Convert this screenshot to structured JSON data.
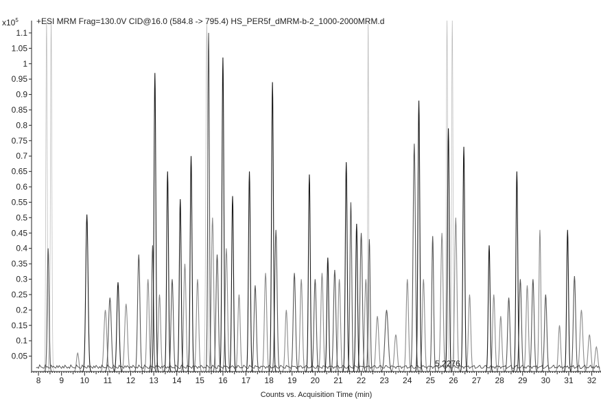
{
  "chart_data": {
    "type": "line",
    "title": "+ESI MRM Frag=130.0V CID@16.0 (584.8 -> 795.4) HS_PER5f_dMRM-b-2_1000-2000MRM.d",
    "xlabel": "Counts vs. Acquisition Time (min)",
    "ylabel": "",
    "y_multiplier_label": "x10",
    "y_multiplier_exp": "5",
    "xlim": [
      7.7,
      32.4
    ],
    "ylim": [
      0,
      1.14
    ],
    "x_ticks": [
      8,
      9,
      10,
      11,
      12,
      13,
      14,
      15,
      16,
      17,
      18,
      19,
      20,
      21,
      22,
      23,
      24,
      25,
      26,
      27,
      28,
      29,
      30,
      31,
      32
    ],
    "x_tick_labels": [
      "8",
      "9",
      "10",
      "11",
      "12",
      "13",
      "14",
      "15",
      "16",
      "17",
      "18",
      "19",
      "20",
      "21",
      "22",
      "23",
      "24",
      "25",
      "26",
      "27",
      "28",
      "29",
      "30",
      "31",
      "32"
    ],
    "y_ticks": [
      0.05,
      0.1,
      0.15,
      0.2,
      0.25,
      0.3,
      0.35,
      0.4,
      0.45,
      0.5,
      0.55,
      0.6,
      0.65,
      0.7,
      0.75,
      0.8,
      0.85,
      0.9,
      0.95,
      1,
      1.05,
      1.1
    ],
    "y_tick_labels": [
      "0.05",
      "0.1",
      "0.15",
      "0.2",
      "0.25",
      "0.3",
      "0.35",
      "0.4",
      "0.45",
      "0.5",
      "0.55",
      "0.6",
      "0.65",
      "0.7",
      "0.75",
      "0.8",
      "0.85",
      "0.9",
      "0.95",
      "1",
      "1.05",
      "1.1"
    ],
    "annotations": [
      {
        "text": "5.2276",
        "x": 25.2,
        "y": 0.015
      }
    ],
    "grid": false,
    "colors": {
      "dark": "#1a1a1a",
      "mid": "#555555",
      "light": "#8a8a8a",
      "faint": "#bdbdbd"
    },
    "peaks": [
      {
        "x": 8.35,
        "h": 1.2,
        "w": 0.03,
        "tone": "faint"
      },
      {
        "x": 8.55,
        "h": 1.2,
        "w": 0.03,
        "tone": "faint"
      },
      {
        "x": 8.42,
        "h": 0.4,
        "w": 0.04,
        "tone": "mid"
      },
      {
        "x": 9.7,
        "h": 0.06,
        "w": 0.05,
        "tone": "light"
      },
      {
        "x": 10.1,
        "h": 0.51,
        "w": 0.05,
        "tone": "dark"
      },
      {
        "x": 10.9,
        "h": 0.2,
        "w": 0.06,
        "tone": "light"
      },
      {
        "x": 11.1,
        "h": 0.24,
        "w": 0.06,
        "tone": "mid"
      },
      {
        "x": 11.45,
        "h": 0.29,
        "w": 0.05,
        "tone": "dark"
      },
      {
        "x": 11.8,
        "h": 0.22,
        "w": 0.06,
        "tone": "light"
      },
      {
        "x": 12.35,
        "h": 0.38,
        "w": 0.05,
        "tone": "mid"
      },
      {
        "x": 12.75,
        "h": 0.3,
        "w": 0.05,
        "tone": "light"
      },
      {
        "x": 12.95,
        "h": 0.41,
        "w": 0.04,
        "tone": "mid"
      },
      {
        "x": 13.05,
        "h": 0.97,
        "w": 0.04,
        "tone": "dark"
      },
      {
        "x": 13.25,
        "h": 0.25,
        "w": 0.05,
        "tone": "light"
      },
      {
        "x": 13.6,
        "h": 0.65,
        "w": 0.04,
        "tone": "dark"
      },
      {
        "x": 13.8,
        "h": 0.3,
        "w": 0.05,
        "tone": "mid"
      },
      {
        "x": 14.15,
        "h": 0.56,
        "w": 0.04,
        "tone": "dark"
      },
      {
        "x": 14.35,
        "h": 0.35,
        "w": 0.05,
        "tone": "light"
      },
      {
        "x": 14.62,
        "h": 0.7,
        "w": 0.04,
        "tone": "dark"
      },
      {
        "x": 14.9,
        "h": 0.3,
        "w": 0.05,
        "tone": "light"
      },
      {
        "x": 15.3,
        "h": 1.13,
        "w": 0.04,
        "tone": "faint"
      },
      {
        "x": 15.38,
        "h": 1.1,
        "w": 0.035,
        "tone": "mid"
      },
      {
        "x": 15.55,
        "h": 0.5,
        "w": 0.05,
        "tone": "light"
      },
      {
        "x": 15.75,
        "h": 0.38,
        "w": 0.05,
        "tone": "mid"
      },
      {
        "x": 16.0,
        "h": 1.02,
        "w": 0.04,
        "tone": "dark"
      },
      {
        "x": 16.15,
        "h": 0.4,
        "w": 0.05,
        "tone": "light"
      },
      {
        "x": 16.42,
        "h": 0.57,
        "w": 0.04,
        "tone": "dark"
      },
      {
        "x": 16.7,
        "h": 0.25,
        "w": 0.05,
        "tone": "light"
      },
      {
        "x": 17.15,
        "h": 0.65,
        "w": 0.04,
        "tone": "dark"
      },
      {
        "x": 17.4,
        "h": 0.28,
        "w": 0.05,
        "tone": "mid"
      },
      {
        "x": 17.85,
        "h": 0.32,
        "w": 0.05,
        "tone": "light"
      },
      {
        "x": 18.15,
        "h": 0.94,
        "w": 0.04,
        "tone": "dark"
      },
      {
        "x": 18.3,
        "h": 0.46,
        "w": 0.05,
        "tone": "mid"
      },
      {
        "x": 18.75,
        "h": 0.2,
        "w": 0.05,
        "tone": "light"
      },
      {
        "x": 19.1,
        "h": 0.32,
        "w": 0.05,
        "tone": "mid"
      },
      {
        "x": 19.4,
        "h": 0.3,
        "w": 0.05,
        "tone": "light"
      },
      {
        "x": 19.75,
        "h": 0.64,
        "w": 0.04,
        "tone": "dark"
      },
      {
        "x": 20.0,
        "h": 0.3,
        "w": 0.05,
        "tone": "mid"
      },
      {
        "x": 20.3,
        "h": 0.32,
        "w": 0.05,
        "tone": "light"
      },
      {
        "x": 20.55,
        "h": 0.37,
        "w": 0.04,
        "tone": "dark"
      },
      {
        "x": 20.85,
        "h": 0.33,
        "w": 0.05,
        "tone": "mid"
      },
      {
        "x": 21.05,
        "h": 0.3,
        "w": 0.05,
        "tone": "light"
      },
      {
        "x": 21.35,
        "h": 0.68,
        "w": 0.04,
        "tone": "dark"
      },
      {
        "x": 21.55,
        "h": 0.55,
        "w": 0.04,
        "tone": "mid"
      },
      {
        "x": 21.8,
        "h": 0.48,
        "w": 0.04,
        "tone": "dark"
      },
      {
        "x": 22.0,
        "h": 0.45,
        "w": 0.05,
        "tone": "mid"
      },
      {
        "x": 22.2,
        "h": 0.3,
        "w": 0.05,
        "tone": "light"
      },
      {
        "x": 22.3,
        "h": 1.2,
        "w": 0.02,
        "tone": "faint"
      },
      {
        "x": 22.35,
        "h": 0.43,
        "w": 0.04,
        "tone": "mid"
      },
      {
        "x": 22.7,
        "h": 0.18,
        "w": 0.06,
        "tone": "light"
      },
      {
        "x": 23.1,
        "h": 0.2,
        "w": 0.07,
        "tone": "mid"
      },
      {
        "x": 23.5,
        "h": 0.12,
        "w": 0.06,
        "tone": "light"
      },
      {
        "x": 24.0,
        "h": 0.3,
        "w": 0.05,
        "tone": "light"
      },
      {
        "x": 24.3,
        "h": 0.74,
        "w": 0.05,
        "tone": "mid"
      },
      {
        "x": 24.5,
        "h": 0.88,
        "w": 0.04,
        "tone": "dark"
      },
      {
        "x": 24.7,
        "h": 0.3,
        "w": 0.05,
        "tone": "light"
      },
      {
        "x": 25.1,
        "h": 0.44,
        "w": 0.04,
        "tone": "mid"
      },
      {
        "x": 25.5,
        "h": 0.45,
        "w": 0.05,
        "tone": "light"
      },
      {
        "x": 25.72,
        "h": 1.2,
        "w": 0.03,
        "tone": "faint"
      },
      {
        "x": 25.78,
        "h": 0.79,
        "w": 0.04,
        "tone": "dark"
      },
      {
        "x": 25.95,
        "h": 1.2,
        "w": 0.03,
        "tone": "faint"
      },
      {
        "x": 26.1,
        "h": 0.5,
        "w": 0.05,
        "tone": "light"
      },
      {
        "x": 26.45,
        "h": 0.73,
        "w": 0.04,
        "tone": "dark"
      },
      {
        "x": 26.7,
        "h": 0.25,
        "w": 0.05,
        "tone": "light"
      },
      {
        "x": 27.55,
        "h": 0.41,
        "w": 0.04,
        "tone": "dark"
      },
      {
        "x": 27.75,
        "h": 0.25,
        "w": 0.05,
        "tone": "light"
      },
      {
        "x": 28.05,
        "h": 0.18,
        "w": 0.05,
        "tone": "light"
      },
      {
        "x": 28.4,
        "h": 0.24,
        "w": 0.05,
        "tone": "mid"
      },
      {
        "x": 28.75,
        "h": 0.65,
        "w": 0.04,
        "tone": "dark"
      },
      {
        "x": 28.9,
        "h": 0.3,
        "w": 0.05,
        "tone": "mid"
      },
      {
        "x": 29.2,
        "h": 0.28,
        "w": 0.05,
        "tone": "light"
      },
      {
        "x": 29.45,
        "h": 0.3,
        "w": 0.05,
        "tone": "mid"
      },
      {
        "x": 29.75,
        "h": 0.46,
        "w": 0.04,
        "tone": "light"
      },
      {
        "x": 30.0,
        "h": 0.25,
        "w": 0.05,
        "tone": "mid"
      },
      {
        "x": 30.6,
        "h": 0.15,
        "w": 0.05,
        "tone": "light"
      },
      {
        "x": 30.95,
        "h": 0.46,
        "w": 0.04,
        "tone": "dark"
      },
      {
        "x": 31.25,
        "h": 0.31,
        "w": 0.05,
        "tone": "mid"
      },
      {
        "x": 31.55,
        "h": 0.2,
        "w": 0.06,
        "tone": "light"
      },
      {
        "x": 31.9,
        "h": 0.12,
        "w": 0.06,
        "tone": "light"
      },
      {
        "x": 32.2,
        "h": 0.08,
        "w": 0.06,
        "tone": "light"
      }
    ]
  }
}
